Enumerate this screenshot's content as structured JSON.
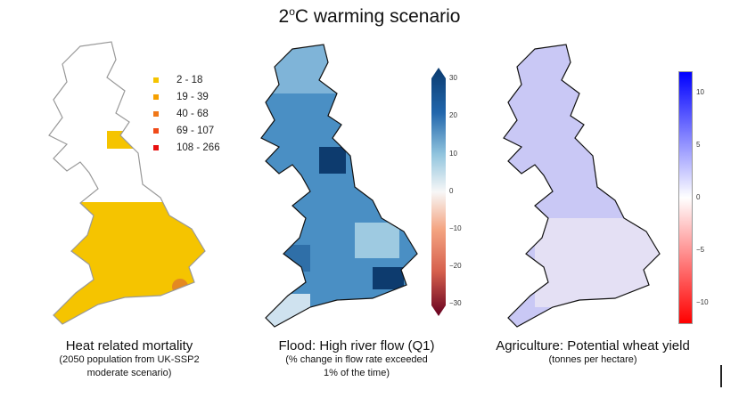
{
  "title_prefix": "2",
  "title_degree": "o",
  "title_suffix": "C warming scenario",
  "panels": [
    {
      "caption": "Heat related mortality",
      "subcaption_lines": [
        "(2050 population from UK-SSP2",
        "moderate scenario)"
      ]
    },
    {
      "caption": "Flood: High river flow (Q1)",
      "subcaption_lines": [
        "(% change in flow rate exceeded",
        "1% of the time)"
      ]
    },
    {
      "caption": "Agriculture: Potential wheat yield",
      "subcaption_lines": [
        "(tonnes per hectare)"
      ]
    }
  ],
  "mortality_legend": [
    {
      "label": "2 - 18",
      "color": "#f5c400"
    },
    {
      "label": "19 - 39",
      "color": "#f5a000"
    },
    {
      "label": "40 - 68",
      "color": "#f07818"
    },
    {
      "label": "69 - 107",
      "color": "#f04a18"
    },
    {
      "label": "108 - 266",
      "color": "#e81010"
    }
  ],
  "flood_colorbar": {
    "colormap": "RdBu",
    "range": [
      -30,
      30
    ],
    "extend": "both",
    "ticks": [
      "30",
      "20",
      "10",
      "0",
      "−10",
      "−20",
      "−30"
    ]
  },
  "wheat_colorbar": {
    "colormap": "bwr",
    "range": [
      -12,
      12
    ],
    "ticks": [
      "10",
      "5",
      "0",
      "−5",
      "−10"
    ]
  }
}
